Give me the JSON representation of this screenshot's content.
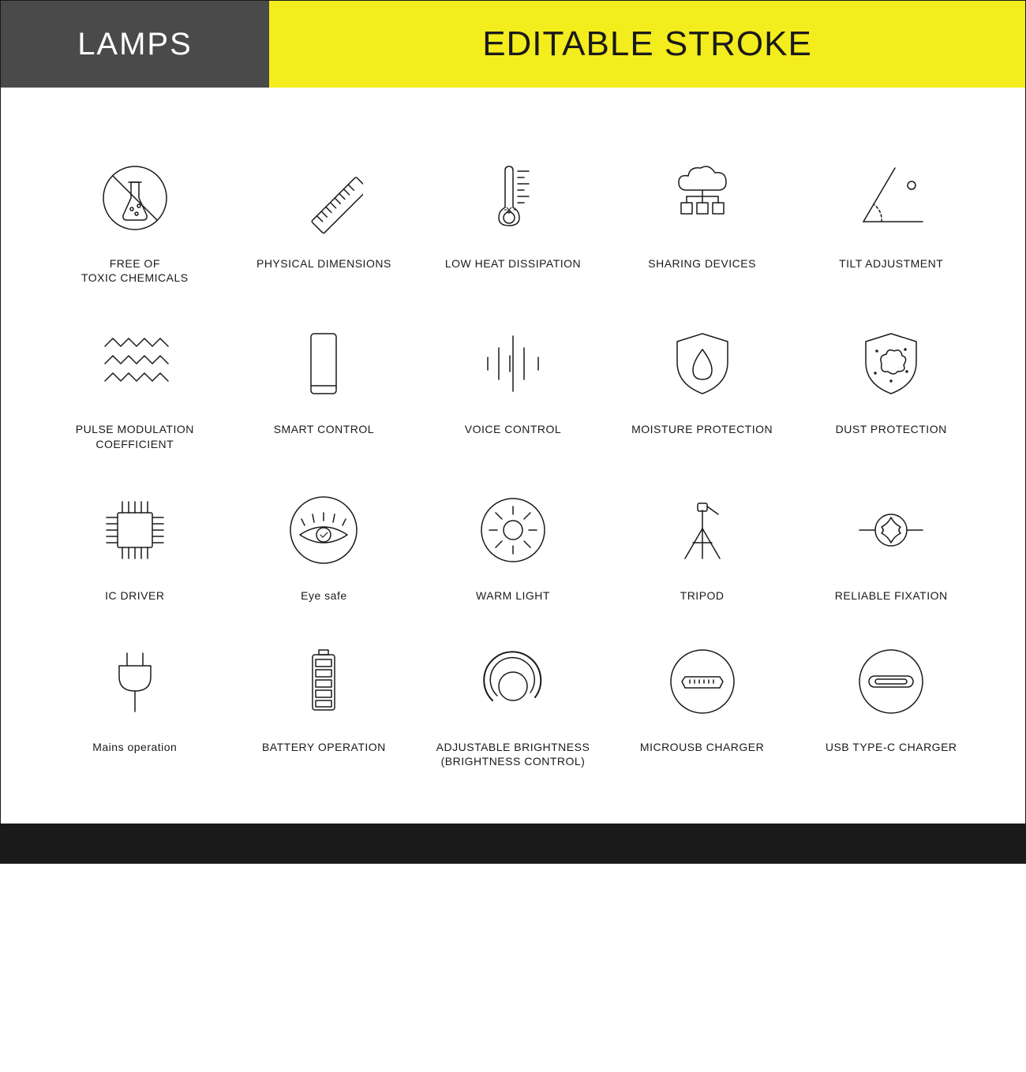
{
  "header": {
    "left": "LAMPS",
    "right": "EDITABLE STROKE"
  },
  "layout": {
    "columns": 5,
    "rows": 4,
    "icon_stroke_color": "#1a1a1a",
    "icon_stroke_width": 1.5,
    "header_left_bg": "#4a4a4a",
    "header_left_color": "#ffffff",
    "header_right_bg": "#f4ed1d",
    "header_right_color": "#1a1a1a",
    "footer_bg": "#1a1a1a",
    "page_bg": "#ffffff",
    "label_fontsize": 14,
    "header_left_fontsize": 40,
    "header_right_fontsize": 44
  },
  "icons": [
    {
      "name": "no-chemicals-icon",
      "label": "FREE OF\nTOXIC CHEMICALS"
    },
    {
      "name": "ruler-icon",
      "label": "PHYSICAL DIMENSIONS"
    },
    {
      "name": "thermometer-icon",
      "label": "LOW HEAT DISSIPATION"
    },
    {
      "name": "cloud-devices-icon",
      "label": "SHARING DEVICES"
    },
    {
      "name": "angle-icon",
      "label": "TILT ADJUSTMENT"
    },
    {
      "name": "wave-icon",
      "label": "PULSE MODULATION\nCOEFFICIENT"
    },
    {
      "name": "phone-icon",
      "label": "SMART CONTROL"
    },
    {
      "name": "soundwave-icon",
      "label": "VOICE CONTROL"
    },
    {
      "name": "shield-drop-icon",
      "label": "MOISTURE PROTECTION"
    },
    {
      "name": "shield-dust-icon",
      "label": "DUST PROTECTION"
    },
    {
      "name": "chip-icon",
      "label": "IC DRIVER"
    },
    {
      "name": "eye-safe-icon",
      "label": "Eye safe"
    },
    {
      "name": "sun-icon",
      "label": "WARM LIGHT"
    },
    {
      "name": "tripod-icon",
      "label": "TRIPOD"
    },
    {
      "name": "screw-icon",
      "label": "RELIABLE FIXATION"
    },
    {
      "name": "plug-icon",
      "label": "Mains operation"
    },
    {
      "name": "battery-icon",
      "label": "BATTERY OPERATION"
    },
    {
      "name": "dial-icon",
      "label": "ADJUSTABLE BRIGHTNESS\n(BRIGHTNESS CONTROL)"
    },
    {
      "name": "microusb-icon",
      "label": "MICROUSB CHARGER"
    },
    {
      "name": "usbc-icon",
      "label": "USB TYPE-C CHARGER"
    }
  ]
}
